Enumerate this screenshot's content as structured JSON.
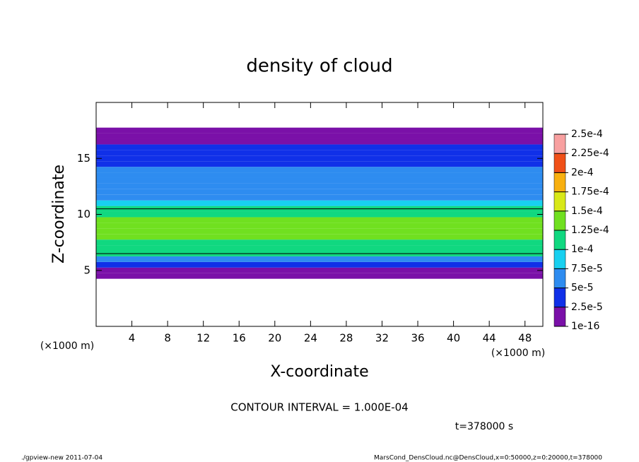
{
  "chart_data": {
    "type": "contour",
    "title": "density of cloud",
    "x_label": "X-coordinate",
    "y_label": "Z-coordinate",
    "x_unit_left": "(×1000 m)",
    "x_unit_right": "(×1000 m)",
    "xlim": [
      0,
      50
    ],
    "xticks": [
      4,
      8,
      12,
      16,
      20,
      24,
      28,
      32,
      36,
      40,
      44,
      48
    ],
    "ylim": [
      0,
      20
    ],
    "yticks": [
      5,
      10,
      15
    ],
    "z": [
      4.5,
      5,
      5.5,
      6,
      6.5,
      7,
      7.5,
      8,
      8.5,
      9,
      9.5,
      10,
      10.5,
      11,
      11.5,
      12,
      12.5,
      13,
      13.5,
      14,
      14.5,
      15,
      15.5,
      16,
      16.5,
      17,
      17.5,
      18
    ],
    "values": [
      1e-17,
      1e-17,
      3e-05,
      7e-05,
      0.0001,
      0.00011,
      0.00012,
      0.00013,
      0.00014,
      0.00014,
      0.00013,
      0.00012,
      0.0001,
      8e-05,
      7e-05,
      6e-05,
      6e-05,
      5e-05,
      5e-05,
      5e-05,
      4e-05,
      4e-05,
      3e-05,
      3e-05,
      1e-17,
      1e-17,
      1e-17,
      null
    ],
    "colorbar_ticks": [
      {
        "value": 1e-16,
        "label": "1e-16"
      },
      {
        "value": 2.5e-05,
        "label": "2.5e-5"
      },
      {
        "value": 5e-05,
        "label": "5e-5"
      },
      {
        "value": 7.5e-05,
        "label": "7.5e-5"
      },
      {
        "value": 0.0001,
        "label": "1e-4"
      },
      {
        "value": 0.000125,
        "label": "1.25e-4"
      },
      {
        "value": 0.00015,
        "label": "1.5e-4"
      },
      {
        "value": 0.000175,
        "label": "1.75e-4"
      },
      {
        "value": 0.0002,
        "label": "2e-4"
      },
      {
        "value": 0.000225,
        "label": "2.25e-4"
      },
      {
        "value": 0.00025,
        "label": "2.5e-4"
      }
    ],
    "colors": [
      "#7a10a8",
      "#1030e8",
      "#2e8cf0",
      "#18d0f0",
      "#10d880",
      "#70e020",
      "#d8e818",
      "#f8b010",
      "#f05018",
      "#f8a0a0"
    ],
    "contour_levels": [
      0.0001
    ],
    "contour_interval": "CONTOUR INTERVAL = 1.000E-04",
    "time": "t=378000 s",
    "footer_left": "./gpview-new   2011-07-04",
    "footer_right": "MarsCond_DensCloud.nc@DensCloud,x=0:50000,z=0:20000,t=378000"
  }
}
